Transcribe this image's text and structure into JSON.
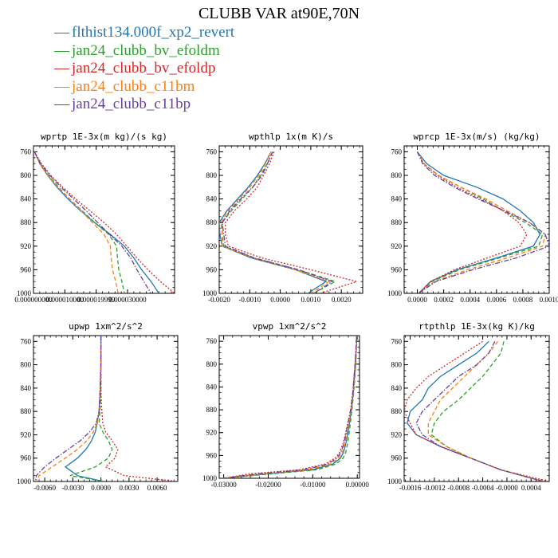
{
  "title": "CLUBB VAR at90E,70N",
  "legend": [
    {
      "name": "flthist134.000f_xp2_revert",
      "color": "#1f77b4",
      "dash": "solid"
    },
    {
      "name": "jan24_clubb_bv_efoldm",
      "color": "#2ca02c",
      "dash": "dashed"
    },
    {
      "name": "jan24_clubb_bv_efoldp",
      "color": "#d62728",
      "dash": "dotted"
    },
    {
      "name": "jan24_clubb_c11bm",
      "color": "#ff7f0e",
      "dash": "dashed"
    },
    {
      "name": "jan24_clubb_c11bp",
      "color": "#6b3fa0",
      "dash": "dashdot"
    }
  ],
  "chart_data": [
    {
      "type": "line",
      "title": "wprtp  1E-3x(m kg)/(s kg)",
      "xlim": [
        0,
        4.5e-05
      ],
      "ylim": [
        1000,
        750
      ],
      "xticks": [
        0,
        1e-05,
        2e-05,
        3e-05
      ],
      "xtick_labels": [
        "0.000000000",
        "0.000010000",
        "0.000019999",
        "0.000030000"
      ],
      "yticks": [
        760,
        800,
        840,
        880,
        920,
        960,
        1000
      ],
      "y": [
        760,
        780,
        800,
        820,
        840,
        860,
        880,
        900,
        920,
        940,
        960,
        980,
        1000
      ],
      "series": [
        {
          "name": "flthist134.000f_xp2_revert",
          "x": [
            3e-07,
            2e-06,
            4.5e-06,
            7.5e-06,
            1.1e-05,
            1.5e-05,
            1.95e-05,
            2.45e-05,
            2.9e-05,
            3.2e-05,
            3.45e-05,
            3.75e-05,
            4e-05
          ]
        },
        {
          "name": "jan24_clubb_bv_efoldm",
          "x": [
            3e-07,
            2.2e-06,
            4.8e-06,
            8e-06,
            1.15e-05,
            1.55e-05,
            1.95e-05,
            2.4e-05,
            2.65e-05,
            2.68e-05,
            2.72e-05,
            2.82e-05,
            2.9e-05
          ]
        },
        {
          "name": "jan24_clubb_bv_efoldp",
          "x": [
            3e-07,
            2.5e-06,
            5.5e-06,
            9.3e-06,
            1.35e-05,
            1.8e-05,
            2.25e-05,
            2.65e-05,
            2.98e-05,
            3.3e-05,
            3.65e-05,
            4.05e-05,
            4.5e-05
          ]
        },
        {
          "name": "jan24_clubb_c11bm",
          "x": [
            3e-07,
            2e-06,
            4.5e-06,
            7.8e-06,
            1.15e-05,
            1.52e-05,
            1.88e-05,
            2.25e-05,
            2.45e-05,
            2.48e-05,
            2.52e-05,
            2.62e-05,
            2.7e-05
          ]
        },
        {
          "name": "jan24_clubb_c11bp",
          "x": [
            3e-07,
            2.3e-06,
            5.2e-06,
            8.8e-06,
            1.28e-05,
            1.68e-05,
            2.05e-05,
            2.42e-05,
            2.82e-05,
            3.1e-05,
            3.3e-05,
            3.52e-05,
            3.75e-05
          ]
        }
      ]
    },
    {
      "type": "line",
      "title": "wpthlp  1x(m K)/s",
      "xlim": [
        -0.002,
        0.0027
      ],
      "ylim": [
        1000,
        750
      ],
      "xticks": [
        -0.002,
        -0.001,
        0,
        0.001,
        0.002
      ],
      "xtick_labels": [
        "-0.0020",
        "-0.0010",
        "0.0000",
        "0.0010",
        "0.0020"
      ],
      "yticks": [
        760,
        800,
        840,
        880,
        920,
        960,
        1000
      ],
      "y": [
        760,
        780,
        800,
        820,
        840,
        860,
        880,
        900,
        920,
        940,
        960,
        980,
        1000
      ],
      "series": [
        {
          "name": "flthist134.000f_xp2_revert",
          "x": [
            -0.0003,
            -0.0005,
            -0.00075,
            -0.00105,
            -0.0014,
            -0.00175,
            -0.002,
            -0.00198,
            -0.0019,
            -0.00095,
            0.0005,
            0.0015,
            0.0009
          ]
        },
        {
          "name": "jan24_clubb_bv_efoldm",
          "x": [
            -0.00025,
            -0.00042,
            -0.00065,
            -0.0009,
            -0.00125,
            -0.0016,
            -0.0019,
            -0.0019,
            -0.00185,
            -0.00085,
            0.0006,
            0.0018,
            0.0011
          ]
        },
        {
          "name": "jan24_clubb_bv_efoldp",
          "x": [
            -0.0002,
            -0.00035,
            -0.00055,
            -0.00075,
            -0.0011,
            -0.0015,
            -0.0018,
            -0.0018,
            -0.0017,
            -0.0006,
            0.001,
            0.0025,
            0.0013
          ]
        },
        {
          "name": "jan24_clubb_c11bm",
          "x": [
            -0.0003,
            -0.00048,
            -0.0007,
            -0.001,
            -0.00135,
            -0.0017,
            -0.00195,
            -0.0019,
            -0.0019,
            -0.0009,
            0.0005,
            0.0016,
            0.001
          ]
        },
        {
          "name": "jan24_clubb_c11bp",
          "x": [
            -0.00025,
            -0.00042,
            -0.0006,
            -0.0009,
            -0.0013,
            -0.00165,
            -0.0019,
            -0.00185,
            -0.0018,
            -0.00085,
            0.0006,
            0.0017,
            0.0011
          ]
        }
      ]
    },
    {
      "type": "line",
      "title": "wprcp  1E-3x(m/s) (kg/kg)",
      "xlim": [
        -0.0001,
        0.001
      ],
      "ylim": [
        1000,
        750
      ],
      "xticks": [
        0,
        0.0002,
        0.0004,
        0.0006,
        0.0008,
        0.001
      ],
      "xtick_labels": [
        "0.0000",
        "0.0002",
        "0.0004",
        "0.0006",
        "0.0008",
        "0.0010"
      ],
      "yticks": [
        760,
        800,
        840,
        880,
        920,
        960,
        1000
      ],
      "y": [
        760,
        780,
        800,
        820,
        840,
        860,
        880,
        900,
        920,
        940,
        960,
        980,
        1000
      ],
      "series": [
        {
          "name": "flthist134.000f_xp2_revert",
          "x": [
            0,
            7e-05,
            0.0002,
            0.00045,
            0.00065,
            0.00078,
            0.00088,
            0.00093,
            0.00088,
            0.0006,
            0.0003,
            0.0001,
            1e-05
          ]
        },
        {
          "name": "jan24_clubb_bv_efoldm",
          "x": [
            0,
            5e-05,
            0.00016,
            0.00033,
            0.0005,
            0.00065,
            0.00082,
            0.00095,
            0.00092,
            0.00062,
            0.00032,
            0.00011,
            1e-05
          ]
        },
        {
          "name": "jan24_clubb_bv_efoldp",
          "x": [
            0,
            5e-05,
            0.00015,
            0.0003,
            0.00048,
            0.00065,
            0.00077,
            0.00083,
            0.00078,
            0.00053,
            0.00028,
            0.0001,
            1e-05
          ]
        },
        {
          "name": "jan24_clubb_c11bm",
          "x": [
            0,
            5e-05,
            0.00016,
            0.00033,
            0.00052,
            0.00068,
            0.00085,
            0.00097,
            0.00095,
            0.00068,
            0.00038,
            0.00013,
            1e-05
          ]
        },
        {
          "name": "jan24_clubb_c11bp",
          "x": [
            0,
            4e-05,
            0.00013,
            0.00028,
            0.00046,
            0.00066,
            0.00085,
            0.00097,
            0.001,
            0.00075,
            0.00042,
            0.00014,
            1e-05
          ]
        }
      ]
    },
    {
      "type": "line",
      "title": "upwp  1xm^2/s^2",
      "xlim": [
        -0.0072,
        0.0082
      ],
      "ylim": [
        1000,
        750
      ],
      "xticks": [
        -0.006,
        -0.003,
        0,
        0.003,
        0.006
      ],
      "xtick_labels": [
        "-0.0060",
        "-0.0030",
        "0.0000",
        "0.0030",
        "0.0060"
      ],
      "yticks": [
        760,
        800,
        840,
        880,
        920,
        960,
        1000
      ],
      "y": [
        750,
        800,
        850,
        880,
        900,
        915,
        930,
        945,
        960,
        975,
        990,
        1000
      ],
      "series": [
        {
          "name": "flthist134.000f_xp2_revert",
          "x": [
            0,
            0,
            -0.0001,
            -0.0002,
            -0.0004,
            -0.0006,
            -0.001,
            -0.0016,
            -0.0025,
            -0.0038,
            -0.0025,
            0.0003
          ]
        },
        {
          "name": "jan24_clubb_bv_efoldm",
          "x": [
            0,
            0,
            0,
            -0.0001,
            -0.0002,
            0.0002,
            0.0008,
            0.0012,
            0.0008,
            -0.0006,
            -0.0033,
            0.0004
          ]
        },
        {
          "name": "jan24_clubb_bv_efoldp",
          "x": [
            0,
            0,
            0,
            0.0001,
            0.0002,
            0.0005,
            0.0012,
            0.0018,
            0.0015,
            0.0005,
            0.0025,
            0.0082
          ]
        },
        {
          "name": "jan24_clubb_c11bm",
          "x": [
            0,
            0,
            -0.0001,
            -0.0002,
            -0.0004,
            -0.0008,
            -0.0015,
            -0.0025,
            -0.0038,
            -0.0052,
            -0.0066,
            -0.0069
          ]
        },
        {
          "name": "jan24_clubb_c11bp",
          "x": [
            0,
            0,
            -0.0001,
            -0.0002,
            -0.0005,
            -0.0012,
            -0.0022,
            -0.0035,
            -0.0048,
            -0.006,
            -0.0069,
            -0.007
          ]
        }
      ]
    },
    {
      "type": "line",
      "title": "vpwp  1xm^2/s^2",
      "xlim": [
        -0.031,
        0.0005
      ],
      "ylim": [
        1000,
        750
      ],
      "xticks": [
        -0.03,
        -0.02,
        -0.01,
        0
      ],
      "xtick_labels": [
        "-0.03000",
        "-0.02000",
        "-0.01000",
        "0.00000"
      ],
      "yticks": [
        760,
        800,
        840,
        880,
        920,
        960,
        1000
      ],
      "y": [
        750,
        800,
        850,
        880,
        900,
        920,
        940,
        955,
        965,
        975,
        985,
        992,
        1000
      ],
      "series": [
        {
          "name": "flthist134.000f_xp2_revert",
          "x": [
            -0.0001,
            -0.0004,
            -0.0009,
            -0.0013,
            -0.0017,
            -0.0021,
            -0.0026,
            -0.0031,
            -0.0038,
            -0.0055,
            -0.01,
            -0.02,
            -0.0302
          ]
        },
        {
          "name": "jan24_clubb_bv_efoldm",
          "x": [
            -0.0001,
            -0.0003,
            -0.0008,
            -0.0012,
            -0.0015,
            -0.0018,
            -0.0022,
            -0.0026,
            -0.0032,
            -0.0048,
            -0.009,
            -0.019,
            -0.0302
          ]
        },
        {
          "name": "jan24_clubb_bv_efoldp",
          "x": [
            -0.0001,
            -0.0005,
            -0.001,
            -0.0015,
            -0.002,
            -0.0026,
            -0.0032,
            -0.004,
            -0.005,
            -0.0072,
            -0.013,
            -0.024,
            -0.0302
          ]
        },
        {
          "name": "jan24_clubb_c11bm",
          "x": [
            -0.0001,
            -0.0004,
            -0.0009,
            -0.0014,
            -0.0018,
            -0.0023,
            -0.0028,
            -0.0034,
            -0.0042,
            -0.006,
            -0.011,
            -0.021,
            -0.0302
          ]
        },
        {
          "name": "jan24_clubb_c11bp",
          "x": [
            -0.0001,
            -0.0005,
            -0.001,
            -0.0015,
            -0.002,
            -0.0025,
            -0.003,
            -0.0037,
            -0.0046,
            -0.0066,
            -0.012,
            -0.022,
            -0.0302
          ]
        }
      ]
    },
    {
      "type": "line",
      "title": "rtpthlp  1E-3x(kg K)/kg",
      "xlim": [
        -0.0017,
        0.0007
      ],
      "ylim": [
        1000,
        750
      ],
      "xticks": [
        -0.0016,
        -0.0012,
        -0.0008,
        -0.0004,
        0,
        0.0004
      ],
      "xtick_labels": [
        "-0.0016",
        "-0.0012",
        "-0.0008",
        "-0.0004",
        "-0.0000",
        "0.0004"
      ],
      "yticks": [
        760,
        800,
        840,
        880,
        920,
        960,
        1000
      ],
      "y": [
        760,
        780,
        800,
        820,
        840,
        860,
        880,
        900,
        920,
        940,
        960,
        980,
        1000
      ],
      "series": [
        {
          "name": "flthist134.000f_xp2_revert",
          "x": [
            -0.0003,
            -0.0005,
            -0.0008,
            -0.0011,
            -0.0013,
            -0.0014,
            -0.0016,
            -0.00165,
            -0.0015,
            -0.0011,
            -0.0006,
            -0.0001,
            0.0006
          ]
        },
        {
          "name": "jan24_clubb_bv_efoldm",
          "x": [
            -5e-05,
            -0.0001,
            -0.00025,
            -0.0004,
            -0.0006,
            -0.0008,
            -0.00105,
            -0.0012,
            -0.00125,
            -0.001,
            -0.0006,
            -0.0001,
            0.0006
          ]
        },
        {
          "name": "jan24_clubb_bv_efoldp",
          "x": [
            -0.0004,
            -0.0007,
            -0.001,
            -0.0013,
            -0.0015,
            -0.00165,
            -0.0017,
            -0.0016,
            -0.0015,
            -0.0011,
            -0.0006,
            -0.0001,
            0.0007
          ]
        },
        {
          "name": "jan24_clubb_c11bm",
          "x": [
            -0.00015,
            -0.0003,
            -0.0005,
            -0.0007,
            -0.0009,
            -0.0011,
            -0.0012,
            -0.0013,
            -0.0013,
            -0.001,
            -0.0006,
            -0.0001,
            0.0006
          ]
        },
        {
          "name": "jan24_clubb_c11bp",
          "x": [
            -0.0002,
            -0.0003,
            -0.0005,
            -0.0008,
            -0.001,
            -0.0012,
            -0.0014,
            -0.0015,
            -0.0014,
            -0.0011,
            -0.0006,
            -0.0001,
            0.0006
          ]
        }
      ]
    }
  ]
}
